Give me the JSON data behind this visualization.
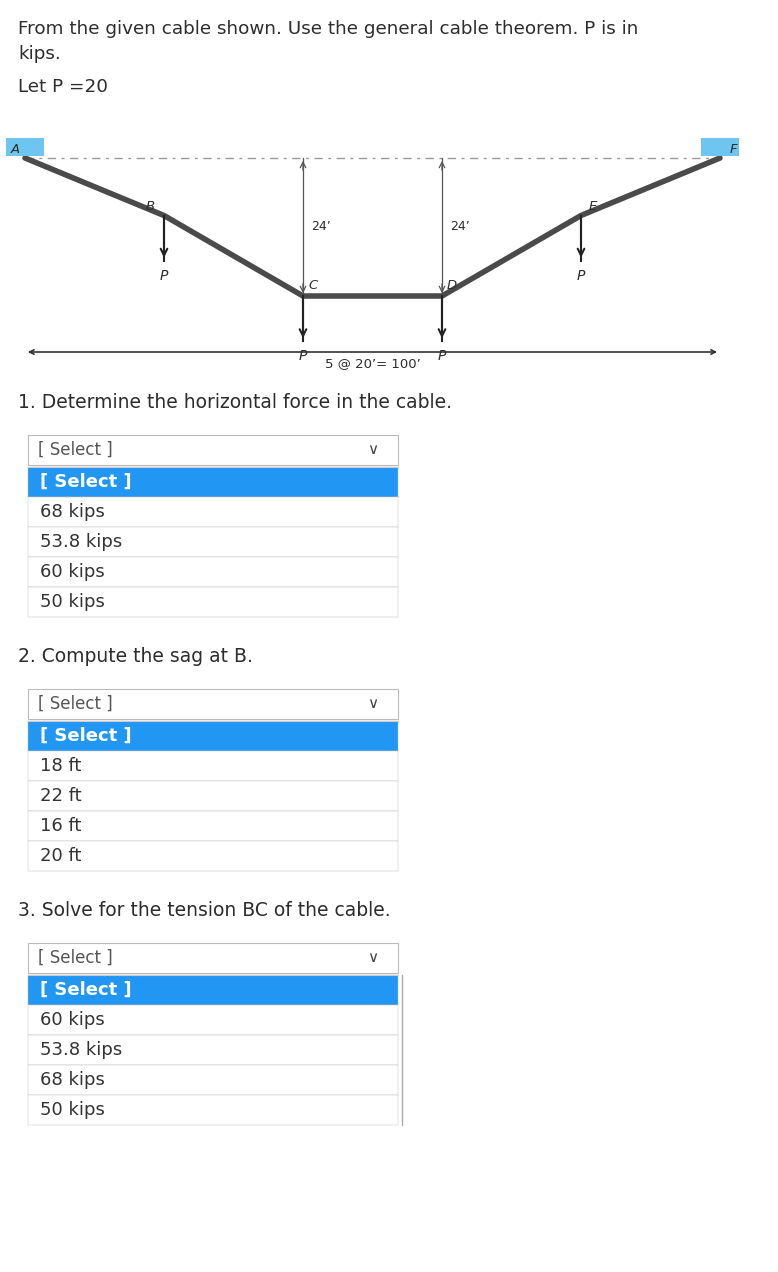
{
  "title_line1": "From the given cable shown. Use the general cable theorem. P is in",
  "title_line2": "kips.",
  "let_p": "Let P =20",
  "span_label": "5 @ 20’= 100’",
  "q1_title": "1. Determine the horizontal force in the cable.",
  "q1_dropdown_text": "[ Select ]",
  "q1_dropdown_options": [
    "[ Select ]",
    "68 kips",
    "53.8 kips",
    "60 kips",
    "50 kips"
  ],
  "q2_title": "2. Compute the sag at B.",
  "q2_dropdown_text": "[ Select ]",
  "q2_dropdown_options": [
    "[ Select ]",
    "18 ft",
    "22 ft",
    "16 ft",
    "20 ft"
  ],
  "q3_title": "3. Solve for the tension BC of the cable.",
  "q3_dropdown_text": "[ Select ]",
  "q3_dropdown_options": [
    "[ Select ]",
    "60 kips",
    "53.8 kips",
    "68 kips",
    "50 kips"
  ],
  "bg_color": "#ffffff",
  "text_color": "#2d2d2d",
  "q_title_color": "#2c2c2c",
  "highlight_color": "#2196f3",
  "dropdown_border": "#bbbbbb",
  "cable_color": "#4a4a4a",
  "support_color": "#6ec6f0",
  "dim_line_color": "#555555",
  "select_text_color": "#555555",
  "option_text_color": "#333333"
}
